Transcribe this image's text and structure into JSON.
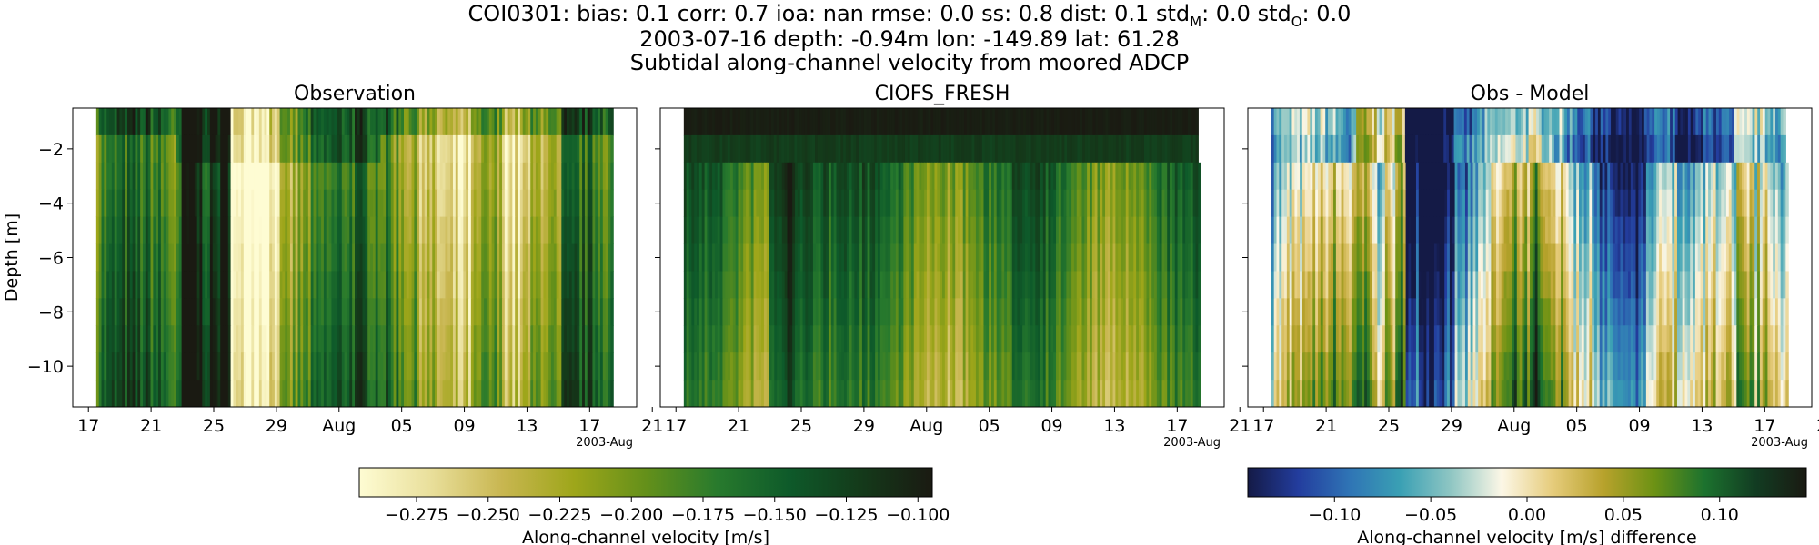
{
  "title": {
    "line1_parts": [
      "COI0301: bias: 0.1  corr: 0.7  ioa: nan  rmse: 0.0  ss: 0.8  dist: 0.1  std",
      "M",
      ": 0.0  std",
      "O",
      ": 0.0"
    ],
    "line2": "2003-07-16 depth: -0.94m lon: -149.89 lat: 61.28",
    "line3": "Subtidal along-channel velocity from moored ADCP"
  },
  "chart_data": [
    {
      "type": "heatmap",
      "title": "Observation",
      "ylabel": "Depth [m]",
      "xlabel": "",
      "x_ticklabels": [
        "17",
        "21",
        "25",
        "29",
        "Aug",
        "05",
        "09",
        "13",
        "17",
        "21"
      ],
      "x_offset_label": "2003-Aug",
      "x_range": [
        "2003-07-16",
        "2003-08-21"
      ],
      "data_x_range": [
        "2003-07-17 12:00",
        "2003-08-19 12:00"
      ],
      "ylim": [
        -11.5,
        -0.5
      ],
      "y_ticks": [
        -2,
        -4,
        -6,
        -8,
        -10
      ],
      "depth_bins": [
        -1,
        -2,
        -3,
        -4,
        -5,
        -6,
        -7,
        -8,
        -9,
        -10,
        -11
      ],
      "colorbar": "velocity",
      "vmin": -0.295,
      "vmax": -0.095
    },
    {
      "type": "heatmap",
      "title": "CIOFS_FRESH",
      "xlabel": "",
      "x_ticklabels": [
        "17",
        "21",
        "25",
        "29",
        "Aug",
        "05",
        "09",
        "13",
        "17",
        "21"
      ],
      "x_offset_label": "2003-Aug",
      "x_range": [
        "2003-07-16",
        "2003-08-21"
      ],
      "data_x_range": [
        "2003-07-17 12:00",
        "2003-08-19 12:00"
      ],
      "ylim": [
        -11.5,
        -0.5
      ],
      "colorbar": "velocity",
      "vmin": -0.295,
      "vmax": -0.095
    },
    {
      "type": "heatmap",
      "title": "Obs - Model",
      "xlabel": "",
      "x_ticklabels": [
        "17",
        "21",
        "25",
        "29",
        "Aug",
        "05",
        "09",
        "13",
        "17",
        "21"
      ],
      "x_offset_label": "2003-Aug",
      "x_range": [
        "2003-07-16",
        "2003-08-21"
      ],
      "data_x_range": [
        "2003-07-17 12:00",
        "2003-08-19 12:00"
      ],
      "ylim": [
        -11.5,
        -0.5
      ],
      "colorbar": "difference",
      "vmin": -0.145,
      "vmax": 0.145
    }
  ],
  "colorbars": {
    "velocity": {
      "label": "Along-channel velocity [m/s]",
      "ticks": [
        -0.275,
        -0.25,
        -0.225,
        -0.2,
        -0.175,
        -0.15,
        -0.125,
        -0.1
      ],
      "ticklabels": [
        "−0.275",
        "−0.250",
        "−0.225",
        "−0.200",
        "−0.175",
        "−0.150",
        "−0.125",
        "−0.100"
      ],
      "vmin": -0.295,
      "vmax": -0.095,
      "colors": [
        "#fefcd3",
        "#e9df9b",
        "#c8b650",
        "#9ea61a",
        "#64901a",
        "#287a2d",
        "#0e5a2a",
        "#143a1a",
        "#1a1a12"
      ]
    },
    "difference": {
      "label": "Along-channel velocity [m/s] difference",
      "ticks": [
        -0.1,
        -0.05,
        0,
        0.05,
        0.1
      ],
      "ticklabels": [
        "−0.10",
        "−0.05",
        "0.00",
        "0.05",
        "0.10"
      ],
      "vmin": -0.145,
      "vmax": 0.145,
      "colors": [
        "#141a46",
        "#233d9e",
        "#2f74b5",
        "#3aa0b4",
        "#8fc6c3",
        "#fcf7e6",
        "#e6cc7c",
        "#b8a22c",
        "#6d9214",
        "#1c722e",
        "#123c22",
        "#1a1a12"
      ]
    }
  }
}
